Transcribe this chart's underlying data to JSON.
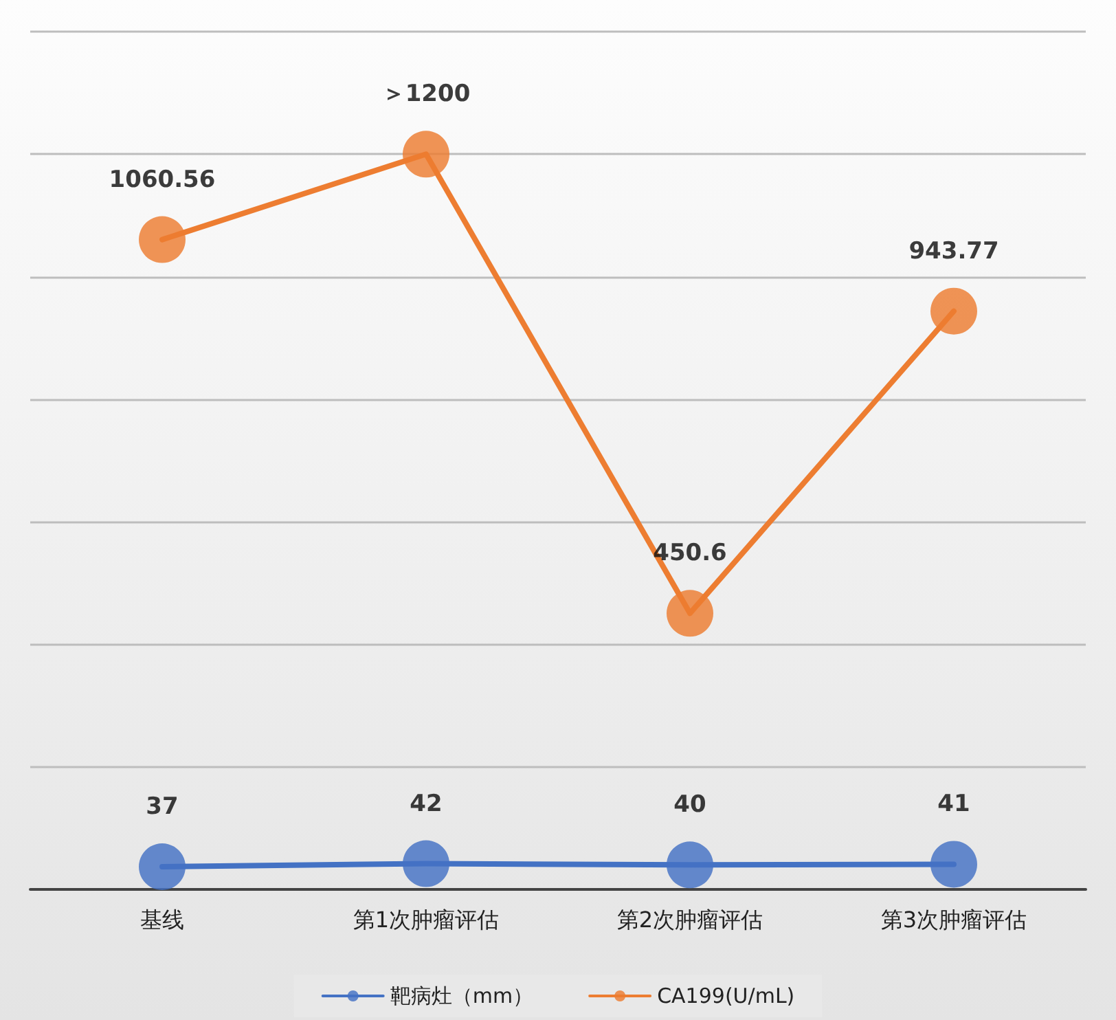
{
  "chart_data": {
    "type": "line",
    "categories": [
      "基线",
      "第1次肿瘤评估",
      "第2次肿瘤评估",
      "第3次肿瘤评估"
    ],
    "series": [
      {
        "name": "靶病灶（mm）",
        "color": "#4472c4",
        "values": [
          37,
          42,
          40,
          41
        ],
        "value_labels": [
          "37",
          "42",
          "40",
          "41"
        ]
      },
      {
        "name": "CA199(U/mL)",
        "color": "#ed7d31",
        "values": [
          1060.56,
          1200,
          450.6,
          943.77
        ],
        "value_labels": [
          "1060.56",
          "＞1200",
          "450.6",
          "943.77"
        ]
      }
    ],
    "ylim": [
      0,
      1400
    ],
    "yticks": [
      {
        "value": 0,
        "label": null
      },
      {
        "value": 200,
        "label": null
      },
      {
        "value": 400,
        "label": null
      },
      {
        "value": 600,
        "label": null
      },
      {
        "value": 800,
        "label": null
      },
      {
        "value": 1000,
        "label": null
      },
      {
        "value": 1200,
        "label": null
      },
      {
        "value": 1400,
        "label": null
      }
    ],
    "tick_labels": "x",
    "grid": "y",
    "legend": "bottom",
    "marker": "circle",
    "line_style": "solid"
  }
}
